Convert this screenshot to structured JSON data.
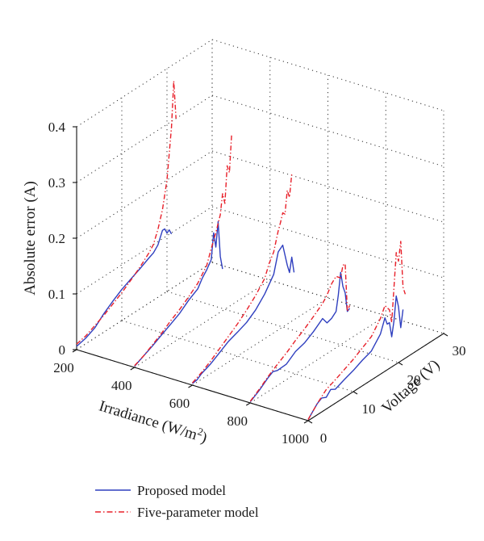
{
  "chart_data": {
    "type": "line",
    "projection": "3d",
    "zlabel": "Absolute error (A)",
    "xlabel": "Irradiance (W/m2)",
    "ylabel": "Voltage (V)",
    "xlim": [
      200,
      1000
    ],
    "ylim": [
      0,
      30
    ],
    "zlim": [
      0,
      0.4
    ],
    "x_ticks": [
      "200",
      "400",
      "600",
      "800",
      "1000"
    ],
    "y_ticks": [
      "0",
      "10",
      "20",
      "30"
    ],
    "z_ticks": [
      "0",
      "0.1",
      "0.2",
      "0.3",
      "0.4"
    ],
    "grid": true,
    "legend_position": "bottom-left",
    "series": [
      {
        "name": "Proposed model",
        "color": "#2f3fbf",
        "style": "solid",
        "lines": [
          {
            "irradiance": 200,
            "points": [
              [
                0,
                0.006
              ],
              [
                2,
                0.01
              ],
              [
                4,
                0.018
              ],
              [
                6,
                0.033
              ],
              [
                8,
                0.045
              ],
              [
                10,
                0.056
              ],
              [
                12,
                0.064
              ],
              [
                14,
                0.072
              ],
              [
                16,
                0.081
              ],
              [
                17,
                0.085
              ],
              [
                18,
                0.094
              ],
              [
                19,
                0.115
              ],
              [
                19.5,
                0.115
              ],
              [
                20,
                0.105
              ],
              [
                20.5,
                0.108
              ],
              [
                21,
                0.098
              ]
            ]
          },
          {
            "irradiance": 400,
            "points": [
              [
                0,
                0.002
              ],
              [
                2,
                0.01
              ],
              [
                4,
                0.018
              ],
              [
                6,
                0.027
              ],
              [
                8,
                0.036
              ],
              [
                10,
                0.045
              ],
              [
                12,
                0.058
              ],
              [
                14,
                0.068
              ],
              [
                15,
                0.082
              ],
              [
                16,
                0.092
              ],
              [
                17,
                0.105
              ],
              [
                17.5,
                0.15
              ],
              [
                18,
                0.122
              ],
              [
                18.5,
                0.165
              ],
              [
                19,
                0.1
              ],
              [
                19.5,
                0.075
              ]
            ]
          },
          {
            "irradiance": 600,
            "points": [
              [
                0,
                0.003
              ],
              [
                1,
                0.004
              ],
              [
                2,
                0.01
              ],
              [
                4,
                0.017
              ],
              [
                6,
                0.027
              ],
              [
                8,
                0.037
              ],
              [
                10,
                0.043
              ],
              [
                12,
                0.05
              ],
              [
                14,
                0.062
              ],
              [
                16,
                0.08
              ],
              [
                18,
                0.105
              ],
              [
                19,
                0.14
              ],
              [
                20,
                0.147
              ],
              [
                21,
                0.106
              ],
              [
                21.5,
                0.09
              ],
              [
                22,
                0.115
              ],
              [
                22.5,
                0.085
              ]
            ]
          },
          {
            "irradiance": 800,
            "points": [
              [
                0,
                0.002
              ],
              [
                2,
                0.012
              ],
              [
                4,
                0.025
              ],
              [
                5,
                0.03
              ],
              [
                6,
                0.027
              ],
              [
                8,
                0.028
              ],
              [
                10,
                0.04
              ],
              [
                12,
                0.045
              ],
              [
                14,
                0.055
              ],
              [
                16,
                0.068
              ],
              [
                17,
                0.055
              ],
              [
                18,
                0.058
              ],
              [
                19,
                0.065
              ],
              [
                19.5,
                0.092
              ],
              [
                20,
                0.13
              ],
              [
                20.5,
                0.102
              ],
              [
                21,
                0.088
              ],
              [
                21.5,
                0.052
              ],
              [
                22,
                0.055
              ]
            ]
          },
          {
            "irradiance": 1000,
            "points": [
              [
                0,
                0.002
              ],
              [
                2,
                0.02
              ],
              [
                3,
                0.025
              ],
              [
                4,
                0.021
              ],
              [
                5,
                0.03
              ],
              [
                6,
                0.025
              ],
              [
                8,
                0.032
              ],
              [
                10,
                0.038
              ],
              [
                12,
                0.046
              ],
              [
                14,
                0.052
              ],
              [
                16,
                0.072
              ],
              [
                17,
                0.096
              ],
              [
                17.5,
                0.082
              ],
              [
                18,
                0.082
              ],
              [
                18.5,
                0.054
              ],
              [
                19,
                0.08
              ],
              [
                19.5,
                0.122
              ],
              [
                20,
                0.1
              ],
              [
                20.5,
                0.06
              ],
              [
                21,
                0.09
              ]
            ]
          }
        ]
      },
      {
        "name": "Five-parameter model",
        "color": "#e8202a",
        "style": "dashdot",
        "lines": [
          {
            "irradiance": 200,
            "points": [
              [
                0,
                0.01
              ],
              [
                2,
                0.014
              ],
              [
                4,
                0.022
              ],
              [
                6,
                0.03
              ],
              [
                8,
                0.04
              ],
              [
                10,
                0.05
              ],
              [
                12,
                0.062
              ],
              [
                14,
                0.075
              ],
              [
                16,
                0.09
              ],
              [
                17,
                0.1
              ],
              [
                18,
                0.122
              ],
              [
                19,
                0.152
              ],
              [
                20,
                0.2
              ],
              [
                21,
                0.29
              ],
              [
                21.5,
                0.37
              ],
              [
                22,
                0.3
              ]
            ]
          },
          {
            "irradiance": 400,
            "points": [
              [
                0,
                0.003
              ],
              [
                2,
                0.01
              ],
              [
                4,
                0.02
              ],
              [
                6,
                0.03
              ],
              [
                8,
                0.042
              ],
              [
                10,
                0.052
              ],
              [
                12,
                0.064
              ],
              [
                14,
                0.078
              ],
              [
                16,
                0.1
              ],
              [
                17,
                0.125
              ],
              [
                18,
                0.148
              ],
              [
                19,
                0.175
              ],
              [
                19.5,
                0.21
              ],
              [
                20,
                0.19
              ],
              [
                20.5,
                0.255
              ],
              [
                21,
                0.24
              ],
              [
                21.5,
                0.305
              ]
            ]
          },
          {
            "irradiance": 600,
            "points": [
              [
                0,
                0.004
              ],
              [
                2,
                0.012
              ],
              [
                4,
                0.022
              ],
              [
                6,
                0.034
              ],
              [
                8,
                0.046
              ],
              [
                10,
                0.058
              ],
              [
                12,
                0.072
              ],
              [
                14,
                0.088
              ],
              [
                16,
                0.108
              ],
              [
                17,
                0.13
              ],
              [
                18,
                0.145
              ],
              [
                19,
                0.178
              ],
              [
                19.5,
                0.19
              ],
              [
                20,
                0.205
              ],
              [
                20.5,
                0.2
              ],
              [
                21,
                0.24
              ],
              [
                21.5,
                0.225
              ],
              [
                22,
                0.265
              ]
            ]
          },
          {
            "irradiance": 800,
            "points": [
              [
                0,
                0.003
              ],
              [
                2,
                0.014
              ],
              [
                4,
                0.027
              ],
              [
                6,
                0.038
              ],
              [
                8,
                0.048
              ],
              [
                10,
                0.06
              ],
              [
                12,
                0.07
              ],
              [
                14,
                0.082
              ],
              [
                16,
                0.095
              ],
              [
                17,
                0.105
              ],
              [
                18,
                0.12
              ],
              [
                19,
                0.128
              ],
              [
                20,
                0.12
              ],
              [
                20.5,
                0.14
              ],
              [
                21,
                0.14
              ],
              [
                21.5,
                0.052
              ],
              [
                22,
                0.06
              ]
            ]
          },
          {
            "irradiance": 1000,
            "points": [
              [
                0,
                0.002
              ],
              [
                2,
                0.02
              ],
              [
                4,
                0.035
              ],
              [
                6,
                0.042
              ],
              [
                8,
                0.05
              ],
              [
                10,
                0.058
              ],
              [
                12,
                0.068
              ],
              [
                14,
                0.078
              ],
              [
                16,
                0.1
              ],
              [
                17,
                0.118
              ],
              [
                18,
                0.105
              ],
              [
                18.5,
                0.08
              ],
              [
                19,
                0.14
              ],
              [
                19.5,
                0.2
              ],
              [
                20,
                0.182
              ],
              [
                20.5,
                0.215
              ],
              [
                21,
                0.13
              ],
              [
                21.5,
                0.115
              ]
            ]
          }
        ]
      }
    ]
  }
}
